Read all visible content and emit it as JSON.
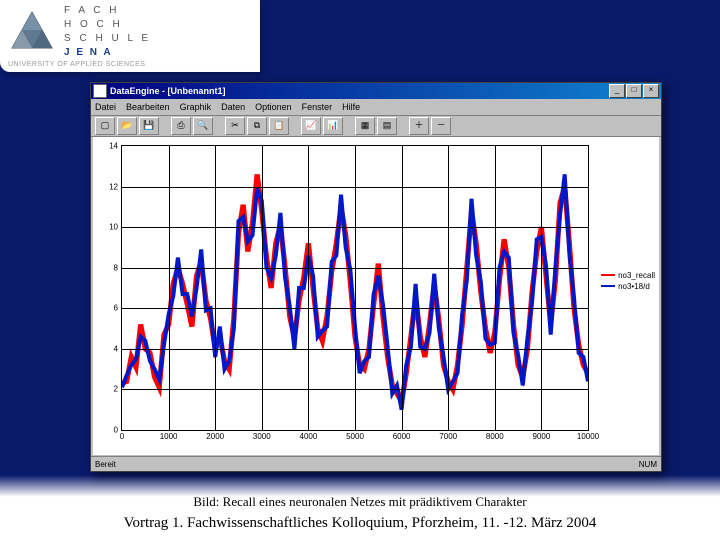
{
  "institution": {
    "line1": "F A C H",
    "line2": "H O C H",
    "line3": "S C H U L E",
    "line4": "J E N A",
    "subtitle": "UNIVERSITY OF APPLIED SCIENCES",
    "logo_fill": "#607890",
    "logo_stroke": "#4a5a6e"
  },
  "slide": {
    "background_top": "#0a1a6a",
    "caption": "Bild: Recall eines neuronalen Netzes mit prädiktivem Charakter",
    "footer": "Vortrag 1. Fachwissenschaftliches Kolloquium, Pforzheim, 11. -12. März 2004"
  },
  "window": {
    "title": "DataEngine - [Unbenannt1]",
    "menus": [
      "Datei",
      "Bearbeiten",
      "Graphik",
      "Daten",
      "Optionen",
      "Fenster",
      "Hilfe"
    ],
    "toolbar_icons": [
      "new",
      "open",
      "save",
      "sep",
      "print",
      "preview",
      "sep",
      "cut",
      "copy",
      "paste",
      "sep",
      "chart1",
      "chart2",
      "sep",
      "grid1",
      "grid2",
      "sep",
      "zoom-in",
      "zoom-out"
    ],
    "status_left": "Bereit",
    "status_right": "NUM"
  },
  "chart": {
    "type": "line",
    "xlim": [
      0,
      10000
    ],
    "ylim": [
      0,
      14
    ],
    "xticks": [
      0,
      1000,
      2000,
      3000,
      4000,
      5000,
      6000,
      7000,
      8000,
      9000,
      10000
    ],
    "yticks": [
      0,
      2,
      4,
      6,
      8,
      10,
      12,
      14
    ],
    "grid_color": "#000000",
    "background": "#ffffff",
    "axis_fontsize": 8,
    "series": [
      {
        "name": "no3_recall",
        "color": "#ff0000",
        "linewidth": 1.3,
        "data": [
          [
            0,
            2.3
          ],
          [
            100,
            2.4
          ],
          [
            200,
            3.6
          ],
          [
            300,
            3.1
          ],
          [
            400,
            5.2
          ],
          [
            500,
            4.0
          ],
          [
            600,
            3.8
          ],
          [
            700,
            2.6
          ],
          [
            800,
            2.1
          ],
          [
            900,
            4.7
          ],
          [
            1000,
            5.2
          ],
          [
            1100,
            7.2
          ],
          [
            1200,
            8.0
          ],
          [
            1300,
            7.2
          ],
          [
            1400,
            6.2
          ],
          [
            1500,
            5.1
          ],
          [
            1600,
            7.6
          ],
          [
            1700,
            8.3
          ],
          [
            1800,
            6.4
          ],
          [
            1900,
            5.5
          ],
          [
            2000,
            4.0
          ],
          [
            2100,
            4.6
          ],
          [
            2200,
            3.4
          ],
          [
            2300,
            3.0
          ],
          [
            2400,
            5.5
          ],
          [
            2500,
            9.7
          ],
          [
            2600,
            11.1
          ],
          [
            2700,
            8.8
          ],
          [
            2800,
            10.2
          ],
          [
            2900,
            12.6
          ],
          [
            3000,
            10.8
          ],
          [
            3100,
            8.5
          ],
          [
            3200,
            7.0
          ],
          [
            3300,
            9.2
          ],
          [
            3400,
            10.1
          ],
          [
            3500,
            8.0
          ],
          [
            3600,
            5.6
          ],
          [
            3700,
            4.5
          ],
          [
            3800,
            6.4
          ],
          [
            3900,
            7.5
          ],
          [
            4000,
            9.2
          ],
          [
            4100,
            7.0
          ],
          [
            4200,
            5.0
          ],
          [
            4300,
            4.4
          ],
          [
            4400,
            5.6
          ],
          [
            4500,
            7.8
          ],
          [
            4600,
            9.2
          ],
          [
            4700,
            11.0
          ],
          [
            4800,
            9.6
          ],
          [
            4900,
            7.3
          ],
          [
            5000,
            4.6
          ],
          [
            5100,
            3.2
          ],
          [
            5200,
            3.0
          ],
          [
            5300,
            4.0
          ],
          [
            5400,
            6.2
          ],
          [
            5500,
            8.2
          ],
          [
            5600,
            5.6
          ],
          [
            5700,
            3.6
          ],
          [
            5800,
            2.2
          ],
          [
            5900,
            1.8
          ],
          [
            6000,
            1.4
          ],
          [
            6100,
            2.8
          ],
          [
            6200,
            4.6
          ],
          [
            6300,
            6.6
          ],
          [
            6400,
            4.6
          ],
          [
            6500,
            3.6
          ],
          [
            6600,
            5.2
          ],
          [
            6700,
            7.2
          ],
          [
            6800,
            5.4
          ],
          [
            6900,
            3.2
          ],
          [
            7000,
            2.4
          ],
          [
            7100,
            2.0
          ],
          [
            7200,
            3.2
          ],
          [
            7300,
            5.2
          ],
          [
            7400,
            8.0
          ],
          [
            7500,
            10.8
          ],
          [
            7600,
            9.2
          ],
          [
            7700,
            6.8
          ],
          [
            7800,
            5.0
          ],
          [
            7900,
            3.8
          ],
          [
            8000,
            4.8
          ],
          [
            8100,
            7.4
          ],
          [
            8200,
            9.4
          ],
          [
            8300,
            8.0
          ],
          [
            8400,
            5.2
          ],
          [
            8500,
            3.2
          ],
          [
            8600,
            2.6
          ],
          [
            8700,
            4.0
          ],
          [
            8800,
            6.8
          ],
          [
            8900,
            8.8
          ],
          [
            9000,
            10.0
          ],
          [
            9100,
            7.6
          ],
          [
            9200,
            5.2
          ],
          [
            9300,
            7.4
          ],
          [
            9400,
            11.2
          ],
          [
            9500,
            12.0
          ],
          [
            9600,
            9.2
          ],
          [
            9700,
            6.0
          ],
          [
            9800,
            4.2
          ],
          [
            9900,
            3.2
          ],
          [
            10000,
            2.8
          ]
        ]
      },
      {
        "name": "no3•18/d",
        "color": "#0018c8",
        "linewidth": 1.0,
        "data": [
          [
            0,
            2.1
          ],
          [
            100,
            2.7
          ],
          [
            200,
            3.2
          ],
          [
            300,
            3.5
          ],
          [
            400,
            4.6
          ],
          [
            500,
            4.4
          ],
          [
            600,
            3.4
          ],
          [
            700,
            3.0
          ],
          [
            800,
            2.5
          ],
          [
            900,
            4.2
          ],
          [
            1000,
            5.7
          ],
          [
            1100,
            6.6
          ],
          [
            1200,
            8.5
          ],
          [
            1300,
            6.7
          ],
          [
            1400,
            6.7
          ],
          [
            1500,
            5.6
          ],
          [
            1600,
            7.0
          ],
          [
            1700,
            8.9
          ],
          [
            1800,
            5.9
          ],
          [
            1900,
            6.0
          ],
          [
            2000,
            3.6
          ],
          [
            2100,
            5.1
          ],
          [
            2200,
            3.0
          ],
          [
            2300,
            3.4
          ],
          [
            2400,
            5.0
          ],
          [
            2500,
            10.3
          ],
          [
            2600,
            10.5
          ],
          [
            2700,
            9.3
          ],
          [
            2800,
            9.6
          ],
          [
            2900,
            11.9
          ],
          [
            3000,
            11.3
          ],
          [
            3100,
            8.0
          ],
          [
            3200,
            7.5
          ],
          [
            3300,
            8.6
          ],
          [
            3400,
            10.7
          ],
          [
            3500,
            7.5
          ],
          [
            3600,
            6.1
          ],
          [
            3700,
            4.0
          ],
          [
            3800,
            7.0
          ],
          [
            3900,
            7.0
          ],
          [
            4000,
            8.6
          ],
          [
            4100,
            7.6
          ],
          [
            4200,
            4.6
          ],
          [
            4300,
            4.9
          ],
          [
            4400,
            5.1
          ],
          [
            4500,
            8.3
          ],
          [
            4600,
            8.6
          ],
          [
            4700,
            11.6
          ],
          [
            4800,
            9.0
          ],
          [
            4900,
            7.9
          ],
          [
            5000,
            5.1
          ],
          [
            5100,
            2.8
          ],
          [
            5200,
            3.4
          ],
          [
            5300,
            3.6
          ],
          [
            5400,
            6.7
          ],
          [
            5500,
            7.6
          ],
          [
            5600,
            6.2
          ],
          [
            5700,
            4.1
          ],
          [
            5800,
            1.8
          ],
          [
            5900,
            2.2
          ],
          [
            6000,
            1.0
          ],
          [
            6100,
            3.2
          ],
          [
            6200,
            4.1
          ],
          [
            6300,
            7.2
          ],
          [
            6400,
            4.1
          ],
          [
            6500,
            4.0
          ],
          [
            6600,
            4.8
          ],
          [
            6700,
            7.7
          ],
          [
            6800,
            5.0
          ],
          [
            6900,
            3.6
          ],
          [
            7000,
            2.0
          ],
          [
            7100,
            2.4
          ],
          [
            7200,
            2.8
          ],
          [
            7300,
            5.7
          ],
          [
            7400,
            7.4
          ],
          [
            7500,
            11.4
          ],
          [
            7600,
            8.6
          ],
          [
            7700,
            7.3
          ],
          [
            7800,
            4.5
          ],
          [
            7900,
            4.2
          ],
          [
            8000,
            4.3
          ],
          [
            8100,
            8.0
          ],
          [
            8200,
            8.8
          ],
          [
            8300,
            8.5
          ],
          [
            8400,
            4.8
          ],
          [
            8500,
            3.7
          ],
          [
            8600,
            2.2
          ],
          [
            8700,
            4.5
          ],
          [
            8800,
            6.3
          ],
          [
            8900,
            9.4
          ],
          [
            9000,
            9.5
          ],
          [
            9100,
            8.1
          ],
          [
            9200,
            4.7
          ],
          [
            9300,
            8.0
          ],
          [
            9400,
            10.6
          ],
          [
            9500,
            12.6
          ],
          [
            9600,
            8.7
          ],
          [
            9700,
            6.5
          ],
          [
            9800,
            3.8
          ],
          [
            9900,
            3.6
          ],
          [
            10000,
            2.4
          ]
        ]
      }
    ]
  }
}
